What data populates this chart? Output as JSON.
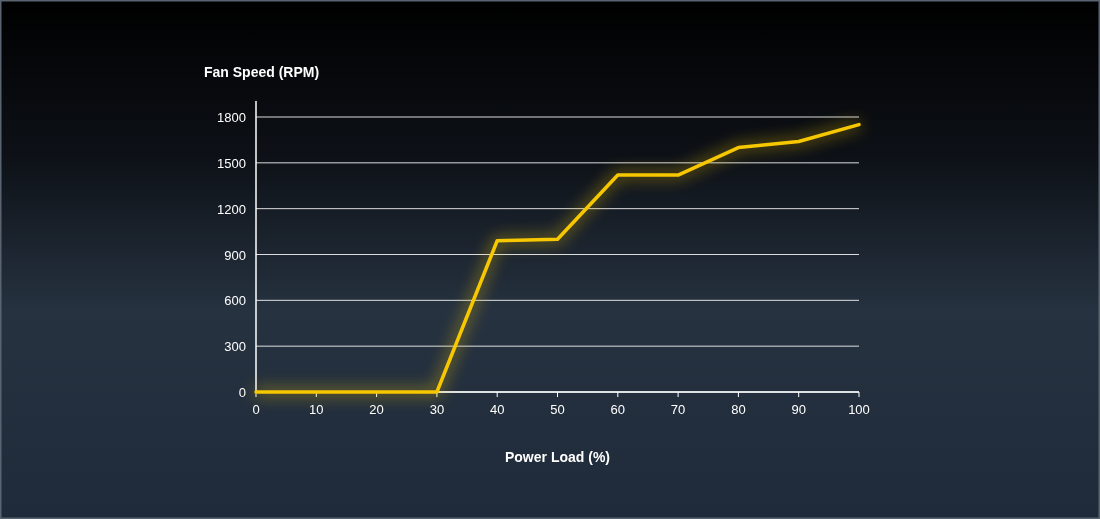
{
  "chart_data": {
    "type": "line",
    "ylabel": "Fan Speed (RPM)",
    "xlabel": "Power Load (%)",
    "x": [
      0,
      10,
      20,
      30,
      40,
      50,
      60,
      70,
      80,
      90,
      100
    ],
    "series": [
      {
        "color": "#f7c800",
        "values": [
          0,
          0,
          0,
          0,
          990,
          1000,
          1420,
          1420,
          1600,
          1640,
          1750
        ]
      }
    ],
    "xlim": [
      0,
      100
    ],
    "xticks": [
      0,
      10,
      20,
      30,
      40,
      50,
      60,
      70,
      80,
      90,
      100
    ],
    "ylim": [
      0,
      1800
    ],
    "yticks": [
      0,
      300,
      600,
      900,
      1200,
      1500,
      1800
    ],
    "grid": "y",
    "marker": "none",
    "line_style": "solid"
  }
}
